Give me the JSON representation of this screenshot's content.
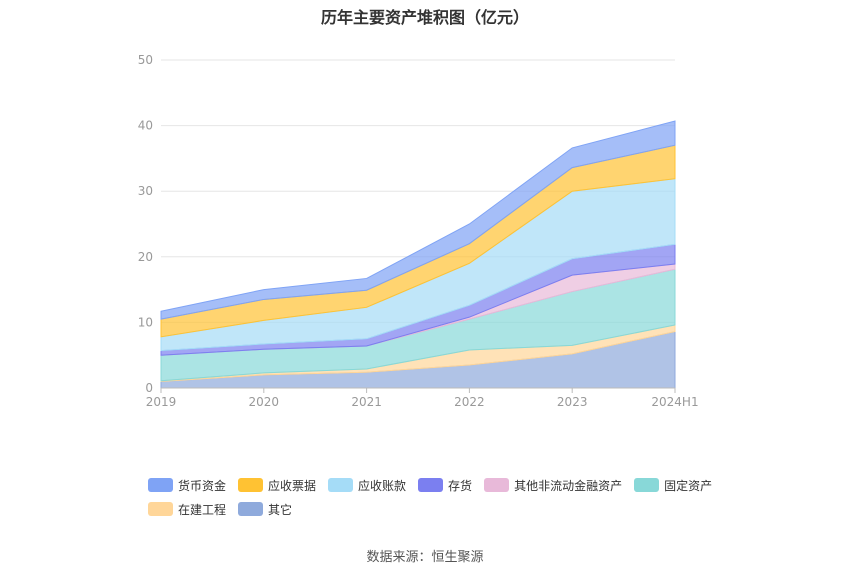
{
  "title": "历年主要资产堆积图（亿元）",
  "source": "数据来源：恒生聚源",
  "chart_data": {
    "type": "area",
    "stacked": true,
    "categories": [
      "2019",
      "2020",
      "2021",
      "2022",
      "2023",
      "2024H1"
    ],
    "ylim": [
      0,
      50
    ],
    "yticks": [
      0,
      10,
      20,
      30,
      40,
      50
    ],
    "grid": true,
    "legend_position": "bottom",
    "series": [
      {
        "name": "其它",
        "color": "#8faadc",
        "values": [
          1.0,
          2.0,
          2.4,
          3.5,
          5.2,
          8.6
        ]
      },
      {
        "name": "在建工程",
        "color": "#ffd699",
        "values": [
          0.1,
          0.3,
          0.5,
          2.3,
          1.3,
          1.0
        ]
      },
      {
        "name": "固定资产",
        "color": "#88d8d8",
        "values": [
          3.9,
          3.6,
          3.5,
          4.7,
          8.2,
          8.5
        ]
      },
      {
        "name": "其他非流动金融资产",
        "color": "#e8b9d9",
        "values": [
          0.0,
          0.0,
          0.0,
          0.3,
          2.5,
          0.8
        ]
      },
      {
        "name": "存货",
        "color": "#7b7ff0",
        "values": [
          0.7,
          0.8,
          1.1,
          1.8,
          2.5,
          3.0
        ]
      },
      {
        "name": "应收账款",
        "color": "#a5dcf7",
        "values": [
          2.1,
          3.6,
          4.8,
          6.4,
          10.3,
          10.0
        ]
      },
      {
        "name": "应收票据",
        "color": "#ffc233",
        "values": [
          2.7,
          3.2,
          2.6,
          3.0,
          3.6,
          5.1
        ]
      },
      {
        "name": "货币资金",
        "color": "#7fa3f5",
        "values": [
          1.2,
          1.5,
          1.8,
          3.0,
          3.0,
          3.7
        ]
      }
    ]
  },
  "legend_rows": [
    [
      "货币资金",
      "应收票据",
      "应收账款",
      "存货",
      "其他非流动金融资产",
      "固定资产"
    ],
    [
      "在建工程",
      "其它"
    ]
  ]
}
